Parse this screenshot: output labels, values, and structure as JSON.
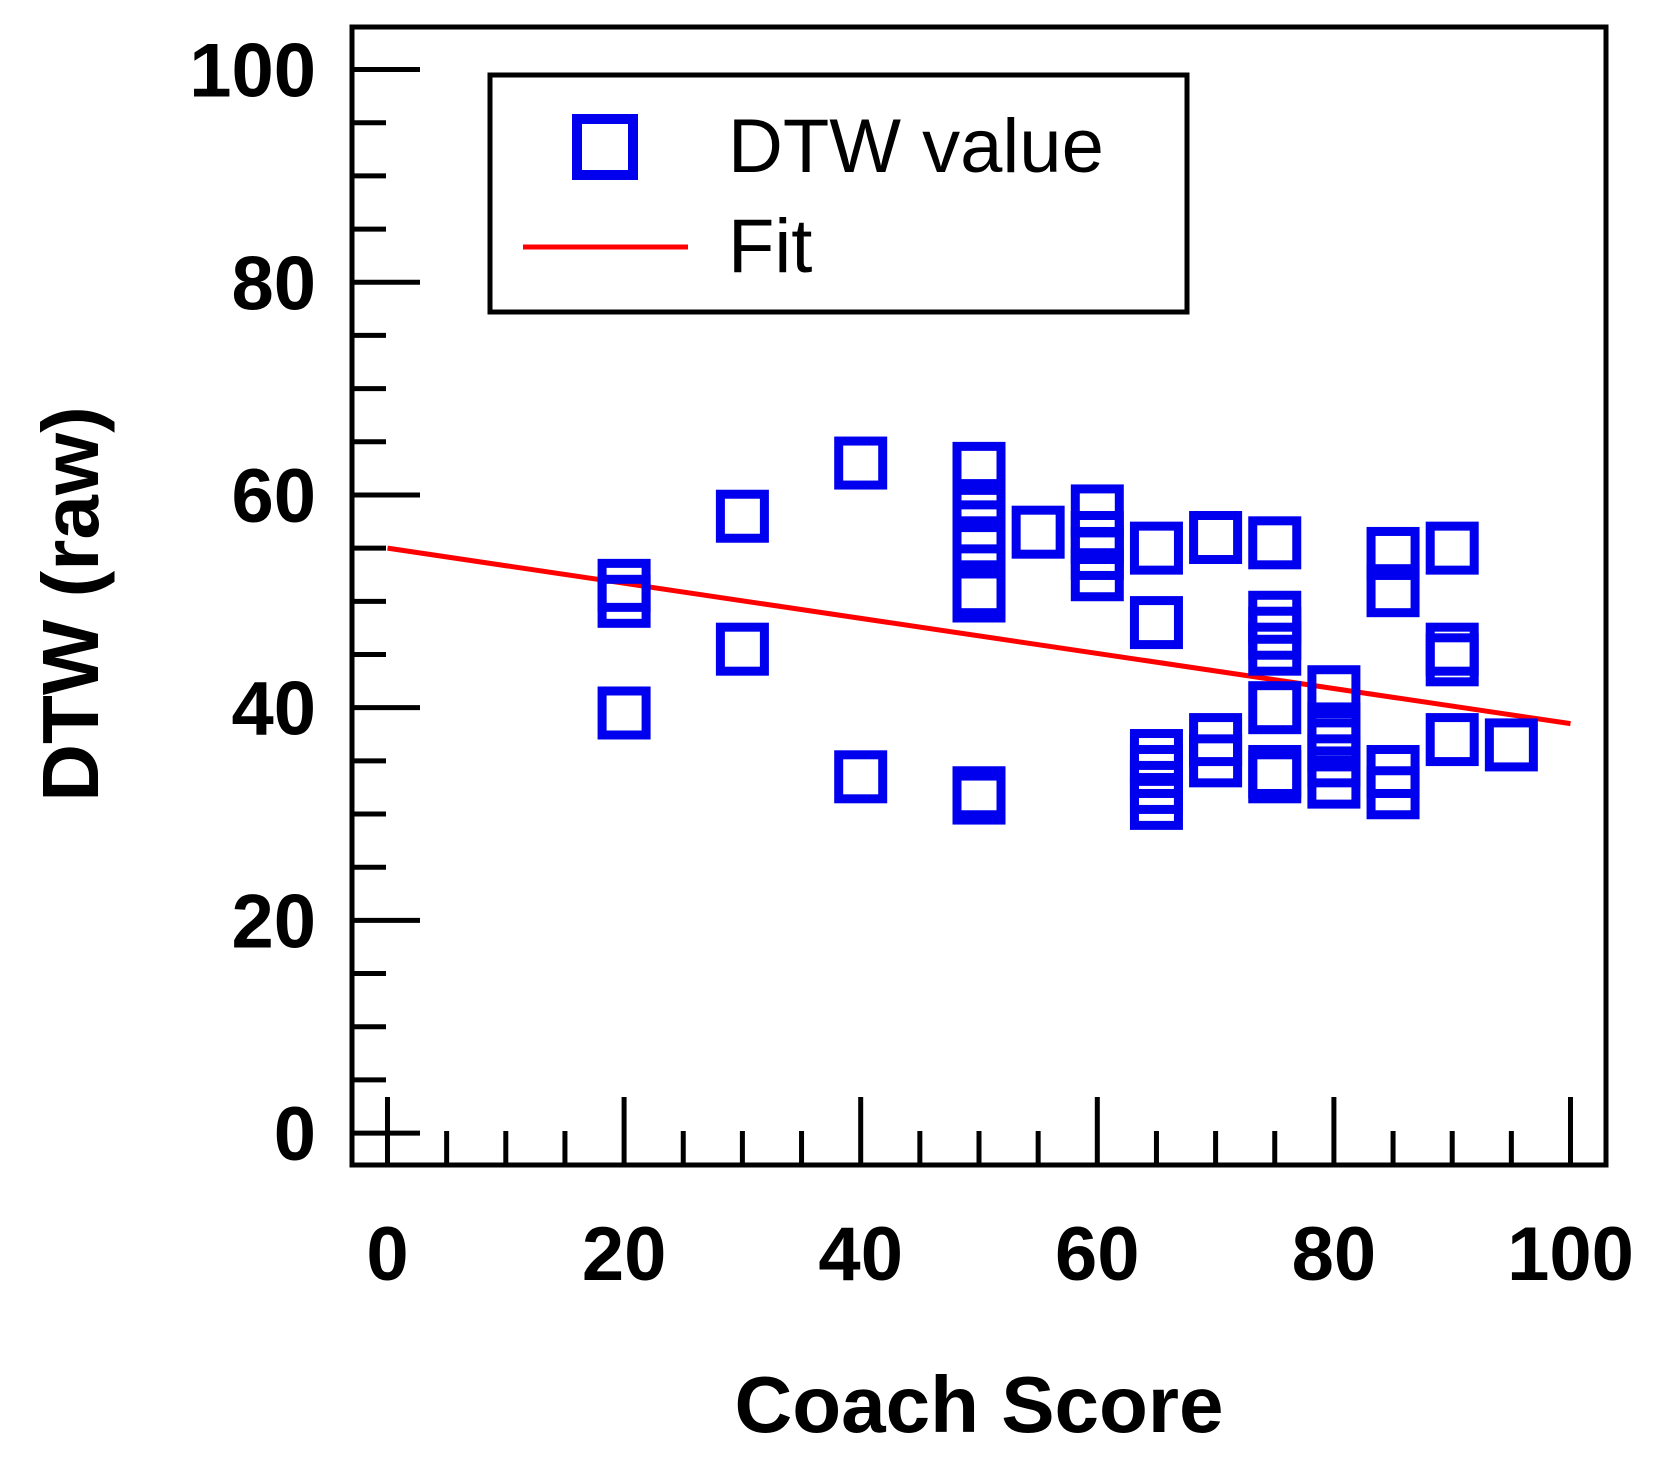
{
  "chart_data": {
    "type": "scatter",
    "xlabel": "Coach Score",
    "ylabel": "DTW (raw)",
    "xlim": [
      -3,
      103
    ],
    "ylim": [
      -3,
      104
    ],
    "x_ticks": [
      0,
      20,
      40,
      60,
      80,
      100
    ],
    "y_ticks": [
      0,
      20,
      40,
      60,
      80,
      100
    ],
    "legend_position": "top",
    "grid": false,
    "marker_color": "#0000ee",
    "fit_color": "#ff0000",
    "series": [
      {
        "name": "DTW value",
        "kind": "points",
        "points": [
          [
            20,
            51.5
          ],
          [
            20,
            50
          ],
          [
            20,
            39.5
          ],
          [
            30,
            58
          ],
          [
            30,
            45.5
          ],
          [
            40,
            63
          ],
          [
            40,
            33.5
          ],
          [
            50,
            62.5
          ],
          [
            50,
            59
          ],
          [
            50,
            57
          ],
          [
            50,
            55.5
          ],
          [
            50,
            51
          ],
          [
            50,
            50.5
          ],
          [
            50,
            32
          ],
          [
            50,
            31.5
          ],
          [
            55,
            56.5
          ],
          [
            60,
            58.5
          ],
          [
            60,
            56
          ],
          [
            60,
            54.5
          ],
          [
            60,
            52.5
          ],
          [
            65,
            55
          ],
          [
            65,
            48
          ],
          [
            65,
            35.5
          ],
          [
            65,
            34
          ],
          [
            65,
            32.5
          ],
          [
            65,
            31
          ],
          [
            70,
            56
          ],
          [
            70,
            37
          ],
          [
            70,
            35
          ],
          [
            75,
            55.5
          ],
          [
            75,
            48.5
          ],
          [
            75,
            47
          ],
          [
            75,
            45.5
          ],
          [
            75,
            40
          ],
          [
            75,
            34
          ],
          [
            75,
            33.5
          ],
          [
            80,
            41.5
          ],
          [
            80,
            38
          ],
          [
            80,
            36.5
          ],
          [
            80,
            35
          ],
          [
            80,
            33
          ],
          [
            85,
            54.5
          ],
          [
            85,
            51
          ],
          [
            85,
            34
          ],
          [
            85,
            32
          ],
          [
            90,
            55
          ],
          [
            90,
            45.5
          ],
          [
            90,
            44.5
          ],
          [
            90,
            37
          ],
          [
            95,
            36.5
          ]
        ]
      },
      {
        "name": "Fit",
        "kind": "line",
        "points": [
          [
            0,
            55
          ],
          [
            100,
            38.5
          ]
        ]
      }
    ]
  }
}
